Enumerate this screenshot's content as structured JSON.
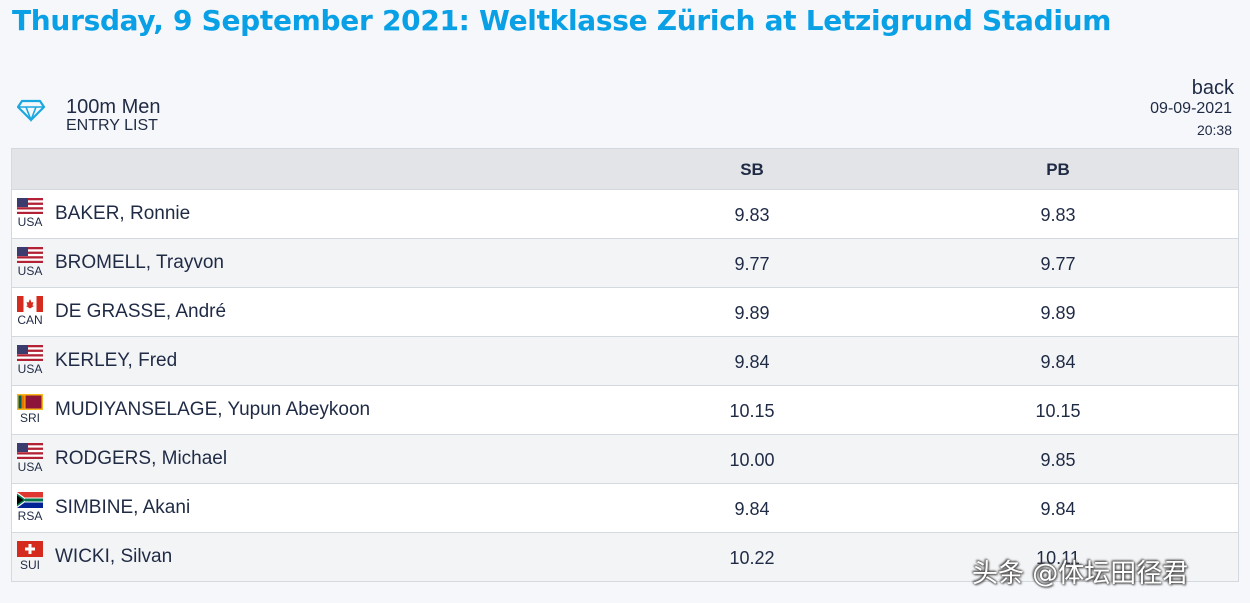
{
  "header": {
    "title": "Thursday, 9 September 2021: Weltklasse Zürich at Letzigrund Stadium"
  },
  "event": {
    "name": "100m Men",
    "subtitle": "ENTRY LIST",
    "back_label": "back",
    "date": "09-09-2021",
    "time": "20:38",
    "icon": "diamond-icon"
  },
  "table": {
    "col_sb": "SB",
    "col_pb": "PB",
    "rows": [
      {
        "nat": "USA",
        "flag": "usa-flag-icon",
        "name": "BAKER, Ronnie",
        "sb": "9.83",
        "pb": "9.83"
      },
      {
        "nat": "USA",
        "flag": "usa-flag-icon",
        "name": "BROMELL, Trayvon",
        "sb": "9.77",
        "pb": "9.77"
      },
      {
        "nat": "CAN",
        "flag": "canada-flag-icon",
        "name": "DE GRASSE, André",
        "sb": "9.89",
        "pb": "9.89"
      },
      {
        "nat": "USA",
        "flag": "usa-flag-icon",
        "name": "KERLEY, Fred",
        "sb": "9.84",
        "pb": "9.84"
      },
      {
        "nat": "SRI",
        "flag": "sri-lanka-flag-icon",
        "name": "MUDIYANSELAGE, Yupun Abeykoon",
        "sb": "10.15",
        "pb": "10.15"
      },
      {
        "nat": "USA",
        "flag": "usa-flag-icon",
        "name": "RODGERS, Michael",
        "sb": "10.00",
        "pb": "9.85"
      },
      {
        "nat": "RSA",
        "flag": "south-africa-flag-icon",
        "name": "SIMBINE, Akani",
        "sb": "9.84",
        "pb": "9.84"
      },
      {
        "nat": "SUI",
        "flag": "switzerland-flag-icon",
        "name": "WICKI, Silvan",
        "sb": "10.22",
        "pb": "10.11"
      }
    ]
  },
  "watermark": "头条 @体坛田径君",
  "colors": {
    "title": "#0aa0e6",
    "header_bg": "#e3e4e7",
    "row_alt": "#f3f4f6",
    "text": "#1f2a44"
  }
}
